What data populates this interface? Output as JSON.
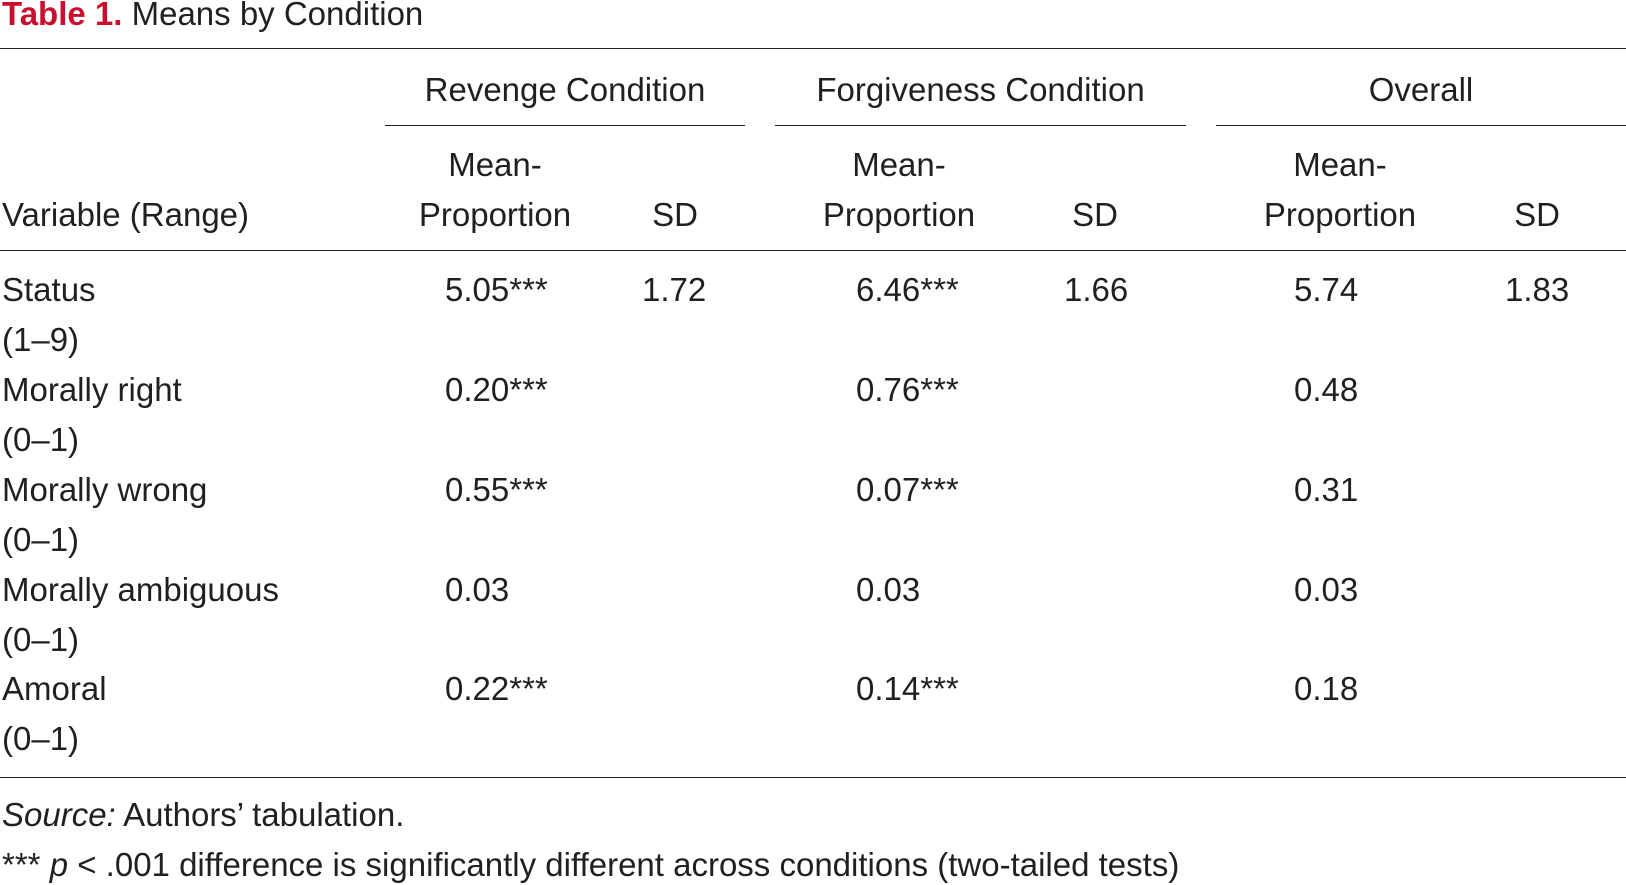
{
  "caption": {
    "label": "Table 1.",
    "title": "Means by Condition"
  },
  "header": {
    "groups": [
      "Revenge Condition",
      "Forgiveness Condition",
      "Overall"
    ],
    "variable_label": "Variable (Range)",
    "mean_label_line1": "Mean-",
    "mean_label_line2": "Proportion",
    "sd_label": "SD"
  },
  "rows": [
    {
      "name": "Status",
      "range": "(1–9)",
      "values": [
        "5.05***",
        "1.72",
        "6.46***",
        "1.66",
        "5.74",
        "1.83"
      ]
    },
    {
      "name": "Morally right",
      "range": "(0–1)",
      "values": [
        "0.20***",
        "",
        "0.76***",
        "",
        "0.48",
        ""
      ]
    },
    {
      "name": "Morally wrong",
      "range": "(0–1)",
      "values": [
        "0.55***",
        "",
        "0.07***",
        "",
        "0.31",
        ""
      ]
    },
    {
      "name": "Morally ambiguous",
      "range": "(0–1)",
      "values": [
        "0.03",
        "",
        "0.03",
        "",
        "0.03",
        ""
      ]
    },
    {
      "name": "Amoral",
      "range": "(0–1)",
      "values": [
        "0.22***",
        "",
        "0.14***",
        "",
        "0.18",
        ""
      ]
    }
  ],
  "notes": {
    "source_label": "Source:",
    "source_text": " Authors’ tabulation.",
    "sig_prefix": "*** ",
    "sig_p": "p",
    "sig_text": " < .001 difference is significantly different across conditions (two-tailed tests)"
  }
}
